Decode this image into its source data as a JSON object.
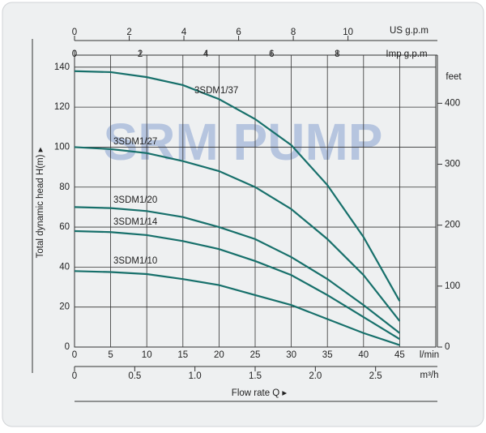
{
  "chart_data": {
    "type": "line",
    "watermark": "SRM PUMP",
    "ylabel": "Total dynamic head H(m) ▸",
    "xlabel": "Flow rate Q ▸",
    "x_unit": "l/min",
    "x": [
      0,
      5,
      10,
      15,
      20,
      25,
      30,
      35,
      40,
      45
    ],
    "xlim": [
      0,
      50
    ],
    "xticks": [
      0,
      5,
      10,
      15,
      20,
      25,
      30,
      35,
      40,
      45
    ],
    "ylim": [
      0,
      146
    ],
    "yticks": [
      0,
      20,
      40,
      60,
      80,
      100,
      120,
      140
    ],
    "y2_unit": "feet",
    "y2lim": [
      0,
      479
    ],
    "y2ticks": [
      0,
      100,
      200,
      300,
      400
    ],
    "grid": true,
    "extra_x_axes": [
      {
        "unit": "US g.p.m",
        "lim": [
          0,
          13.21
        ],
        "ticks": [
          0,
          2,
          4,
          6,
          8,
          10
        ]
      },
      {
        "unit": "Imp g.p.m",
        "lim": [
          0,
          11.0
        ],
        "ticks": [
          0,
          2,
          4,
          6,
          8
        ]
      },
      {
        "unit": "m³/h",
        "lim": [
          0,
          3.0
        ],
        "ticks": [
          0,
          0.5,
          {
            "value": 1,
            "label": "1.0"
          },
          1.5,
          {
            "value": 2,
            "label": "2.0"
          },
          2.5
        ]
      }
    ],
    "series": [
      {
        "name": "3SDM1/37",
        "color": "#17706b",
        "values": [
          138,
          137.5,
          135,
          131,
          124,
          114,
          101,
          81,
          55,
          23
        ]
      },
      {
        "name": "3SDM1/27",
        "color": "#17706b",
        "values": [
          100,
          99,
          97,
          93,
          88,
          80,
          69,
          54,
          36,
          13
        ]
      },
      {
        "name": "3SDM1/20",
        "color": "#17706b",
        "values": [
          70,
          69.5,
          68,
          65,
          60,
          54,
          45,
          34,
          21,
          7
        ]
      },
      {
        "name": "3SDM1/14",
        "color": "#17706b",
        "values": [
          58,
          57.5,
          56,
          53,
          49,
          43,
          36,
          26,
          15,
          4
        ]
      },
      {
        "name": "3SDM1/10",
        "color": "#17706b",
        "values": [
          38,
          37.5,
          36.5,
          34,
          31,
          26,
          21,
          14,
          7,
          1
        ]
      }
    ]
  }
}
